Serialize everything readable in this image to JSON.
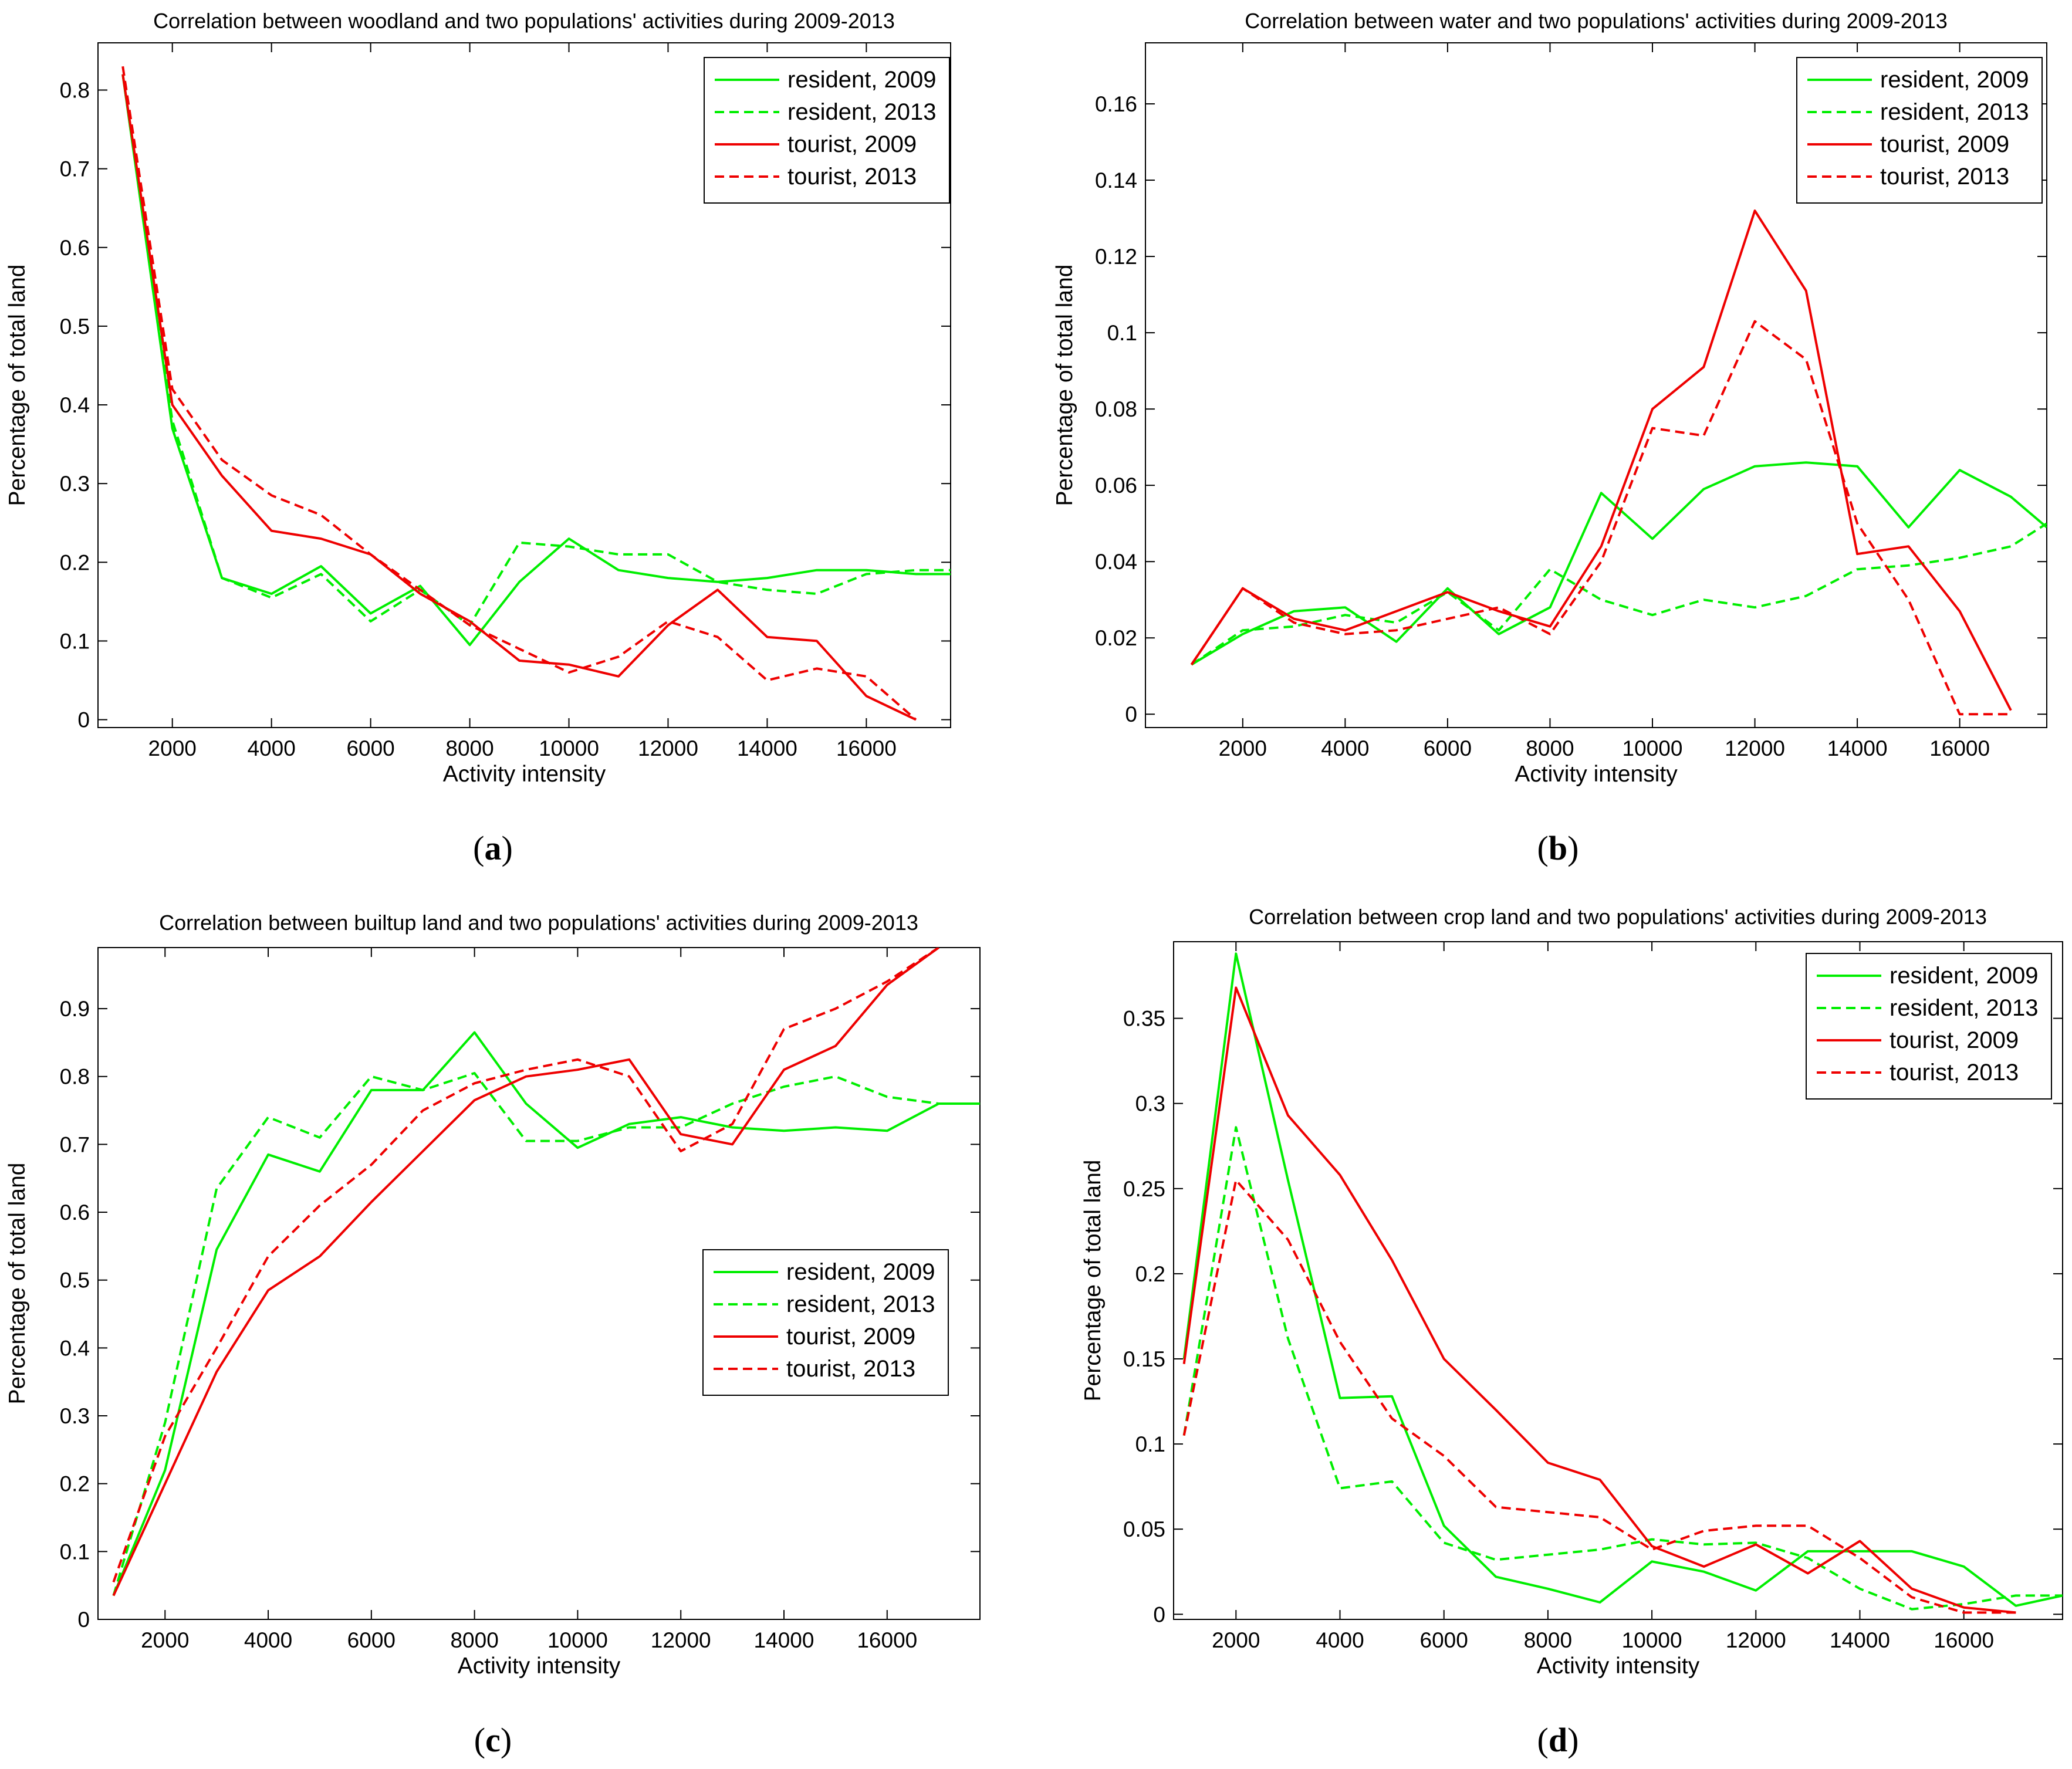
{
  "chart_data": [
    {
      "type": "line",
      "title": "Correlation between woodland and two populations' activities during 2009-2013",
      "xlabel": "Activity intensity",
      "ylabel": "Percentage of total land",
      "sublabel": "a",
      "xlim": [
        500,
        17700
      ],
      "ylim": [
        -0.01,
        0.86
      ],
      "xticks": [
        2000,
        4000,
        6000,
        8000,
        10000,
        12000,
        14000,
        16000
      ],
      "yticks": [
        0,
        0.1,
        0.2,
        0.3,
        0.4,
        0.5,
        0.6,
        0.7,
        0.8
      ],
      "ytick_labels": [
        "0",
        "0.1",
        "0.2",
        "0.3",
        "0.4",
        "0.5",
        "0.6",
        "0.7",
        "0.8"
      ],
      "legend_position": "top-right",
      "series": [
        {
          "name": "resident, 2009",
          "color": "#00ee00",
          "dash": "solid",
          "x": [
            1000,
            2000,
            3000,
            4000,
            5000,
            6000,
            7000,
            8000,
            9000,
            10000,
            11000,
            12000,
            13000,
            14000,
            15000,
            16000,
            17000,
            17700
          ],
          "y": [
            0.82,
            0.37,
            0.18,
            0.16,
            0.195,
            0.135,
            0.17,
            0.095,
            0.175,
            0.23,
            0.19,
            0.18,
            0.175,
            0.18,
            0.19,
            0.19,
            0.185,
            0.185
          ]
        },
        {
          "name": "resident, 2013",
          "color": "#00ee00",
          "dash": "dashed",
          "x": [
            1000,
            2000,
            3000,
            4000,
            5000,
            6000,
            7000,
            8000,
            9000,
            10000,
            11000,
            12000,
            13000,
            14000,
            15000,
            16000,
            17000,
            17700
          ],
          "y": [
            0.82,
            0.38,
            0.18,
            0.155,
            0.185,
            0.125,
            0.165,
            0.12,
            0.225,
            0.22,
            0.21,
            0.21,
            0.175,
            0.165,
            0.16,
            0.185,
            0.19,
            0.19
          ]
        },
        {
          "name": "tourist, 2009",
          "color": "#ee0000",
          "dash": "solid",
          "x": [
            1000,
            2000,
            3000,
            4000,
            5000,
            6000,
            7000,
            8000,
            9000,
            10000,
            11000,
            12000,
            13000,
            14000,
            15000,
            16000,
            17000
          ],
          "y": [
            0.82,
            0.4,
            0.31,
            0.24,
            0.23,
            0.21,
            0.16,
            0.125,
            0.075,
            0.07,
            0.055,
            0.12,
            0.165,
            0.105,
            0.1,
            0.03,
            0.0
          ]
        },
        {
          "name": "tourist, 2013",
          "color": "#ee0000",
          "dash": "dashed",
          "x": [
            1000,
            2000,
            3000,
            4000,
            5000,
            6000,
            7000,
            8000,
            9000,
            10000,
            11000,
            12000,
            13000,
            14000,
            15000,
            16000,
            17000
          ],
          "y": [
            0.83,
            0.42,
            0.33,
            0.285,
            0.26,
            0.21,
            0.165,
            0.12,
            0.09,
            0.06,
            0.08,
            0.125,
            0.105,
            0.05,
            0.065,
            0.055,
            0.0
          ]
        }
      ]
    },
    {
      "type": "line",
      "title": "Correlation between water and two populations' activities during 2009-2013",
      "xlabel": "Activity intensity",
      "ylabel": "Percentage of total land",
      "sublabel": "b",
      "xlim": [
        100,
        17700
      ],
      "ylim": [
        -0.0035,
        0.176
      ],
      "xticks": [
        2000,
        4000,
        6000,
        8000,
        10000,
        12000,
        14000,
        16000
      ],
      "yticks": [
        0,
        0.02,
        0.04,
        0.06,
        0.08,
        0.1,
        0.12,
        0.14,
        0.16
      ],
      "ytick_labels": [
        "0",
        "0.02",
        "0.04",
        "0.06",
        "0.08",
        "0.1",
        "0.12",
        "0.14",
        "0.16"
      ],
      "legend_position": "top-right",
      "series": [
        {
          "name": "resident, 2009",
          "color": "#00ee00",
          "dash": "solid",
          "x": [
            1000,
            2000,
            3000,
            4000,
            5000,
            6000,
            7000,
            8000,
            9000,
            10000,
            11000,
            12000,
            13000,
            14000,
            15000,
            16000,
            17000,
            17700
          ],
          "y": [
            0.013,
            0.021,
            0.027,
            0.028,
            0.019,
            0.033,
            0.021,
            0.028,
            0.058,
            0.046,
            0.059,
            0.065,
            0.066,
            0.065,
            0.049,
            0.064,
            0.057,
            0.049
          ]
        },
        {
          "name": "resident, 2013",
          "color": "#00ee00",
          "dash": "dashed",
          "x": [
            1000,
            2000,
            3000,
            4000,
            5000,
            6000,
            7000,
            8000,
            9000,
            10000,
            11000,
            12000,
            13000,
            14000,
            15000,
            16000,
            17000,
            17700
          ],
          "y": [
            0.013,
            0.022,
            0.023,
            0.026,
            0.024,
            0.032,
            0.022,
            0.038,
            0.03,
            0.026,
            0.03,
            0.028,
            0.031,
            0.038,
            0.039,
            0.041,
            0.044,
            0.05
          ]
        },
        {
          "name": "tourist, 2009",
          "color": "#ee0000",
          "dash": "solid",
          "x": [
            1000,
            2000,
            3000,
            4000,
            5000,
            6000,
            7000,
            8000,
            9000,
            10000,
            11000,
            12000,
            13000,
            14000,
            15000,
            16000,
            17000
          ],
          "y": [
            0.013,
            0.033,
            0.025,
            0.022,
            0.027,
            0.032,
            0.027,
            0.023,
            0.044,
            0.08,
            0.091,
            0.132,
            0.111,
            0.042,
            0.044,
            0.027,
            0.001
          ]
        },
        {
          "name": "tourist, 2013",
          "color": "#ee0000",
          "dash": "dashed",
          "x": [
            1000,
            2000,
            3000,
            4000,
            5000,
            6000,
            7000,
            8000,
            9000,
            10000,
            11000,
            12000,
            13000,
            14000,
            15000,
            16000,
            17000
          ],
          "y": [
            0.013,
            0.033,
            0.024,
            0.021,
            0.022,
            0.025,
            0.028,
            0.021,
            0.04,
            0.075,
            0.073,
            0.103,
            0.093,
            0.05,
            0.03,
            0.0,
            0.0
          ]
        }
      ]
    },
    {
      "type": "line",
      "title": "Correlation between builtup land and two populations' activities during 2009-2013",
      "xlabel": "Activity intensity",
      "ylabel": "Percentage of total land",
      "sublabel": "c",
      "xlim": [
        700,
        17800
      ],
      "ylim": [
        0,
        0.99
      ],
      "xticks": [
        2000,
        4000,
        6000,
        8000,
        10000,
        12000,
        14000,
        16000
      ],
      "yticks": [
        0,
        0.1,
        0.2,
        0.3,
        0.4,
        0.5,
        0.6,
        0.7,
        0.8,
        0.9
      ],
      "ytick_labels": [
        "0",
        "0.1",
        "0.2",
        "0.3",
        "0.4",
        "0.5",
        "0.6",
        "0.7",
        "0.8",
        "0.9"
      ],
      "legend_position": "center-right",
      "series": [
        {
          "name": "resident, 2009",
          "color": "#00ee00",
          "dash": "solid",
          "x": [
            1000,
            2000,
            3000,
            4000,
            5000,
            6000,
            7000,
            8000,
            9000,
            10000,
            11000,
            12000,
            13000,
            14000,
            15000,
            16000,
            17000,
            17800
          ],
          "y": [
            0.035,
            0.22,
            0.545,
            0.685,
            0.66,
            0.78,
            0.78,
            0.865,
            0.76,
            0.695,
            0.73,
            0.74,
            0.725,
            0.72,
            0.725,
            0.72,
            0.76,
            0.76
          ]
        },
        {
          "name": "resident, 2013",
          "color": "#00ee00",
          "dash": "dashed",
          "x": [
            1000,
            2000,
            3000,
            4000,
            5000,
            6000,
            7000,
            8000,
            9000,
            10000,
            11000,
            12000,
            13000,
            14000,
            15000,
            16000,
            17000,
            17800
          ],
          "y": [
            0.035,
            0.29,
            0.635,
            0.74,
            0.71,
            0.8,
            0.78,
            0.805,
            0.705,
            0.705,
            0.725,
            0.725,
            0.76,
            0.785,
            0.8,
            0.77,
            0.76,
            0.76
          ]
        },
        {
          "name": "tourist, 2009",
          "color": "#ee0000",
          "dash": "solid",
          "x": [
            1000,
            2000,
            3000,
            4000,
            5000,
            6000,
            7000,
            8000,
            9000,
            10000,
            11000,
            12000,
            13000,
            14000,
            15000,
            16000,
            17000
          ],
          "y": [
            0.035,
            0.2,
            0.365,
            0.485,
            0.535,
            0.615,
            0.69,
            0.765,
            0.8,
            0.81,
            0.825,
            0.715,
            0.7,
            0.81,
            0.845,
            0.935,
            0.99
          ]
        },
        {
          "name": "tourist, 2013",
          "color": "#ee0000",
          "dash": "dashed",
          "x": [
            1000,
            2000,
            3000,
            4000,
            5000,
            6000,
            7000,
            8000,
            9000,
            10000,
            11000,
            12000,
            13000,
            14000,
            15000,
            16000,
            17000
          ],
          "y": [
            0.055,
            0.27,
            0.4,
            0.535,
            0.61,
            0.67,
            0.75,
            0.79,
            0.81,
            0.825,
            0.8,
            0.69,
            0.73,
            0.87,
            0.9,
            0.94,
            0.99
          ]
        }
      ]
    },
    {
      "type": "line",
      "title": "Correlation between crop land and two populations' activities during 2009-2013",
      "xlabel": "Activity intensity",
      "ylabel": "Percentage of total land",
      "sublabel": "d",
      "xlim": [
        800,
        17900
      ],
      "ylim": [
        -0.003,
        0.395
      ],
      "xticks": [
        2000,
        4000,
        6000,
        8000,
        10000,
        12000,
        14000,
        16000
      ],
      "yticks": [
        0,
        0.05,
        0.1,
        0.15,
        0.2,
        0.25,
        0.3,
        0.35
      ],
      "ytick_labels": [
        "0",
        "0.05",
        "0.1",
        "0.15",
        "0.2",
        "0.25",
        "0.3",
        "0.35"
      ],
      "legend_position": "top-right",
      "series": [
        {
          "name": "resident, 2009",
          "color": "#00ee00",
          "dash": "solid",
          "x": [
            1000,
            2000,
            3000,
            4000,
            5000,
            6000,
            7000,
            8000,
            9000,
            10000,
            11000,
            12000,
            13000,
            14000,
            15000,
            16000,
            17000,
            17900
          ],
          "y": [
            0.15,
            0.388,
            0.255,
            0.127,
            0.128,
            0.052,
            0.022,
            0.015,
            0.007,
            0.031,
            0.025,
            0.014,
            0.037,
            0.037,
            0.037,
            0.028,
            0.005,
            0.011
          ]
        },
        {
          "name": "resident, 2013",
          "color": "#00ee00",
          "dash": "dashed",
          "x": [
            1000,
            2000,
            3000,
            4000,
            5000,
            6000,
            7000,
            8000,
            9000,
            10000,
            11000,
            12000,
            13000,
            14000,
            15000,
            16000,
            17000,
            17900
          ],
          "y": [
            0.105,
            0.286,
            0.162,
            0.074,
            0.078,
            0.042,
            0.032,
            0.035,
            0.038,
            0.044,
            0.041,
            0.042,
            0.033,
            0.015,
            0.003,
            0.006,
            0.011,
            0.011
          ]
        },
        {
          "name": "tourist, 2009",
          "color": "#ee0000",
          "dash": "solid",
          "x": [
            1000,
            2000,
            3000,
            4000,
            5000,
            6000,
            7000,
            8000,
            9000,
            10000,
            11000,
            12000,
            13000,
            14000,
            15000,
            16000,
            17000
          ],
          "y": [
            0.147,
            0.368,
            0.293,
            0.258,
            0.208,
            0.15,
            0.12,
            0.089,
            0.079,
            0.04,
            0.028,
            0.041,
            0.024,
            0.043,
            0.015,
            0.004,
            0.001
          ]
        },
        {
          "name": "tourist, 2013",
          "color": "#ee0000",
          "dash": "dashed",
          "x": [
            1000,
            2000,
            3000,
            4000,
            5000,
            6000,
            7000,
            8000,
            9000,
            10000,
            11000,
            12000,
            13000,
            14000,
            15000,
            16000,
            17000
          ],
          "y": [
            0.105,
            0.255,
            0.22,
            0.16,
            0.115,
            0.093,
            0.063,
            0.06,
            0.057,
            0.038,
            0.049,
            0.052,
            0.052,
            0.033,
            0.01,
            0.001,
            0.001
          ]
        }
      ]
    }
  ]
}
